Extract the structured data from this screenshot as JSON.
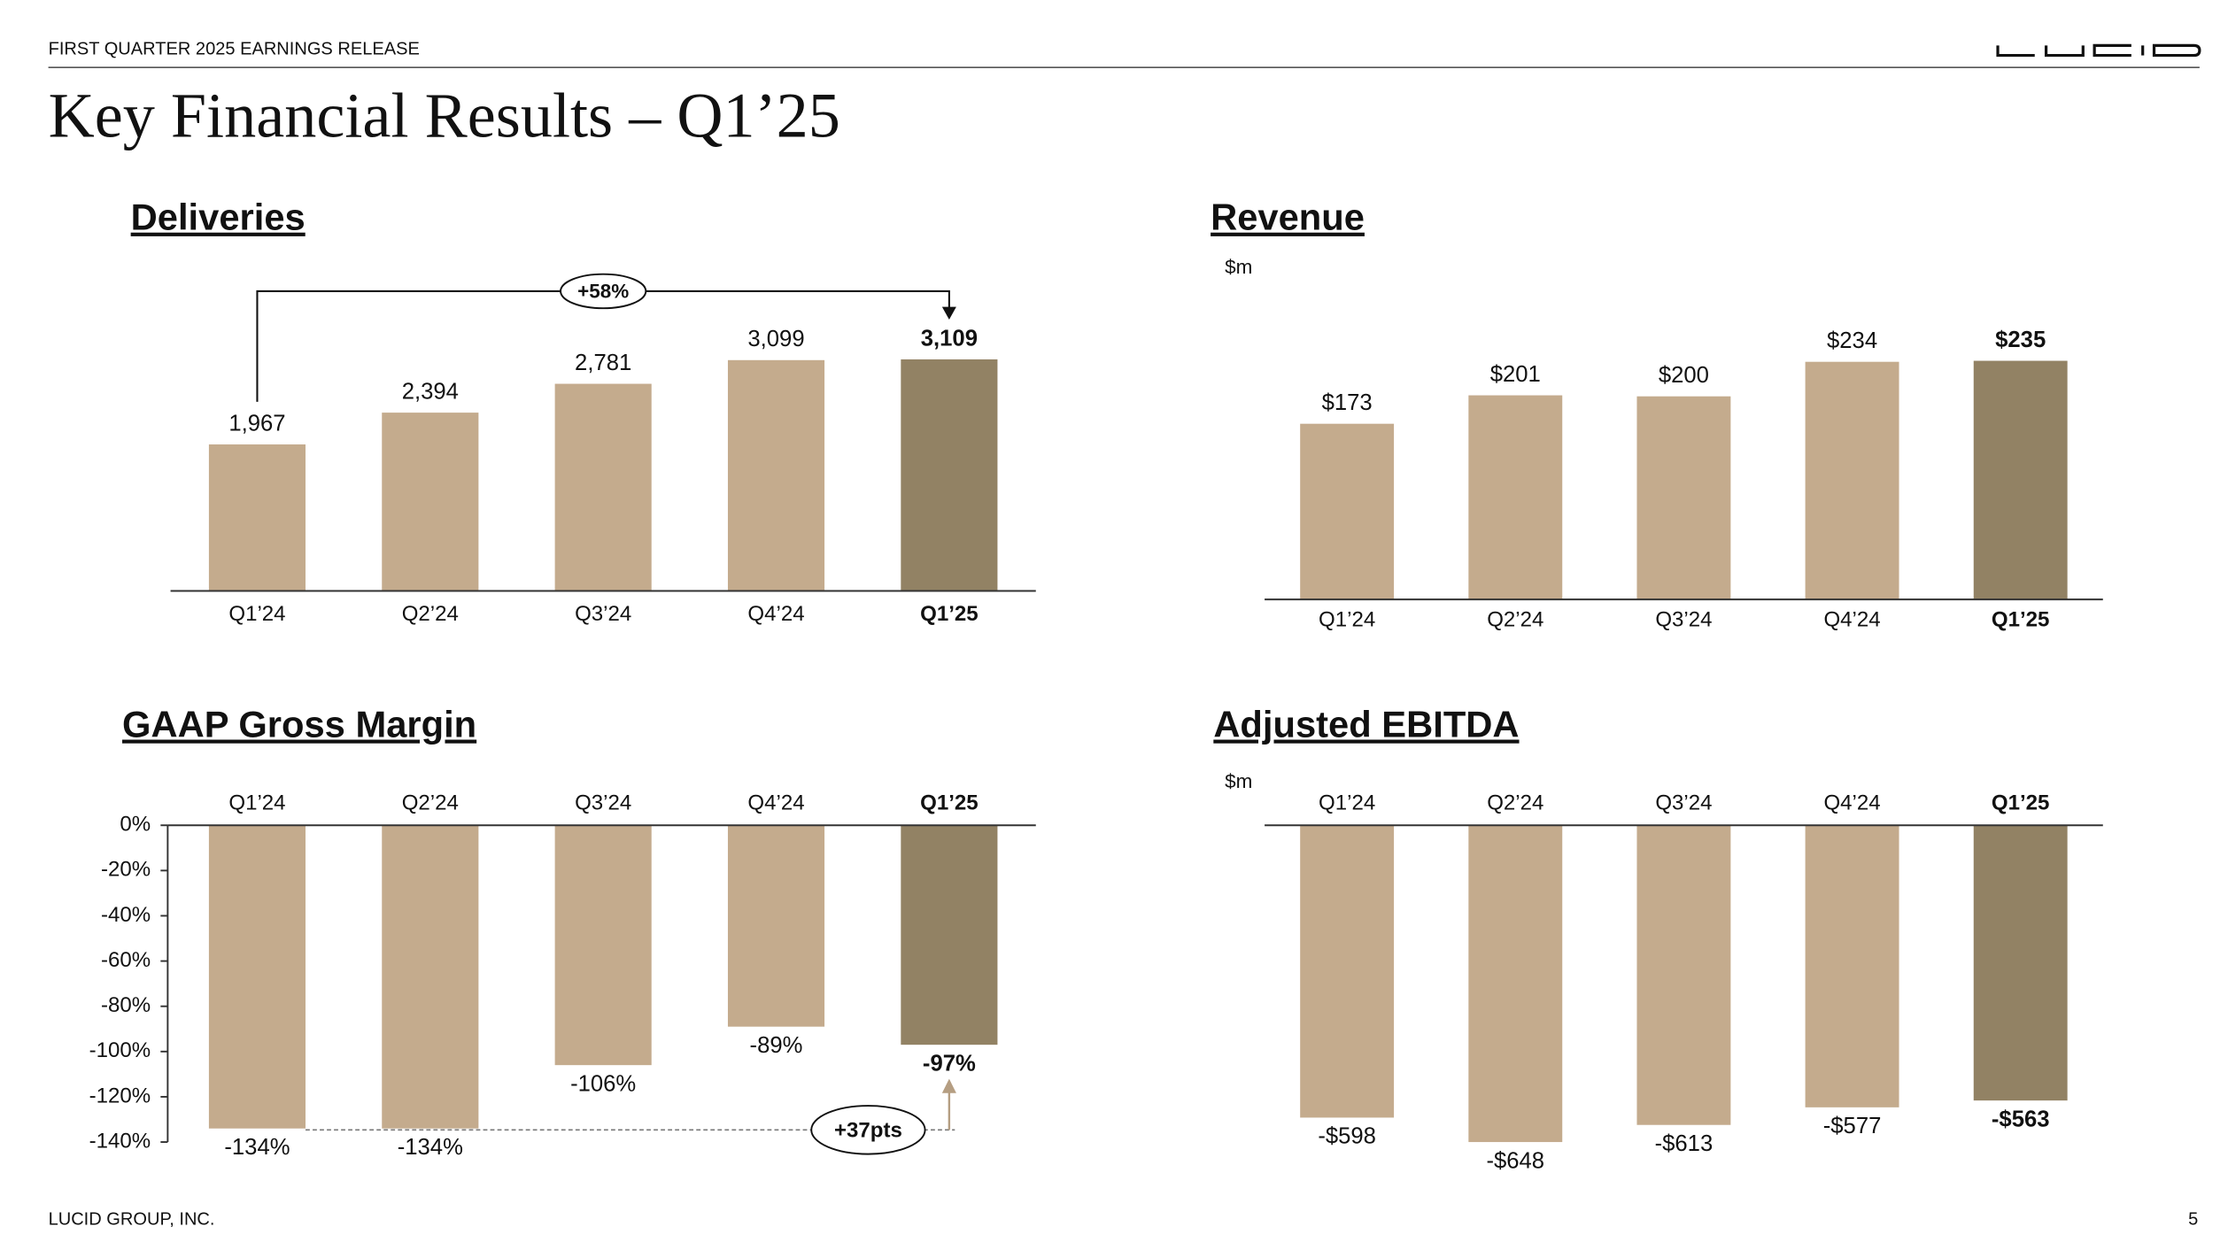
{
  "header": {
    "text": "FIRST QUARTER 2025 EARNINGS RELEASE"
  },
  "title": "Key Financial Results – Q1’25",
  "footer": {
    "company": "LUCID GROUP, INC.",
    "page": "5"
  },
  "chart_data": [
    {
      "type": "bar",
      "title": "Deliveries",
      "categories": [
        "Q1’24",
        "Q2’24",
        "Q3’24",
        "Q4’24",
        "Q1’25"
      ],
      "values": [
        1967,
        2394,
        2781,
        3099,
        3109
      ],
      "value_labels": [
        "1,967",
        "2,394",
        "2,781",
        "3,099",
        "3,109"
      ],
      "colors": [
        "#c4ab8d",
        "#c4ab8d",
        "#c4ab8d",
        "#c4ab8d",
        "#928264"
      ],
      "highlight_color": "#928264",
      "annotation": "+58%"
    },
    {
      "type": "bar",
      "title": "Revenue",
      "unit": "$m",
      "categories": [
        "Q1’24",
        "Q2’24",
        "Q3’24",
        "Q4’24",
        "Q1’25"
      ],
      "values": [
        173,
        201,
        200,
        234,
        235
      ],
      "value_labels": [
        "$173",
        "$201",
        "$200",
        "$234",
        "$235"
      ],
      "colors": [
        "#c4ab8d",
        "#c4ab8d",
        "#c4ab8d",
        "#c4ab8d",
        "#928264"
      ],
      "highlight_color": "#928264"
    },
    {
      "type": "bar",
      "title": "GAAP Gross Margin",
      "categories": [
        "Q1’24",
        "Q2’24",
        "Q3’24",
        "Q4’24",
        "Q1’25"
      ],
      "values": [
        -134,
        -134,
        -106,
        -89,
        -97
      ],
      "value_labels": [
        "-134%",
        "-134%",
        "-106%",
        "-89%",
        "-97%"
      ],
      "colors": [
        "#c4ab8d",
        "#c4ab8d",
        "#c4ab8d",
        "#c4ab8d",
        "#928264"
      ],
      "highlight_color": "#928264",
      "ylim": [
        -140,
        0
      ],
      "yticks": [
        {
          "value": 0,
          "label": "0%"
        },
        {
          "value": -20,
          "label": "-20%"
        },
        {
          "value": -40,
          "label": "-40%"
        },
        {
          "value": -60,
          "label": "-60%"
        },
        {
          "value": -80,
          "label": "-80%"
        },
        {
          "value": -100,
          "label": "-100%"
        },
        {
          "value": -120,
          "label": "-120%"
        },
        {
          "value": -140,
          "label": "-140%"
        }
      ],
      "annotation": "+37pts"
    },
    {
      "type": "bar",
      "title": "Adjusted EBITDA",
      "unit": "$m",
      "categories": [
        "Q1’24",
        "Q2’24",
        "Q3’24",
        "Q4’24",
        "Q1’25"
      ],
      "values": [
        -598,
        -648,
        -613,
        -577,
        -563
      ],
      "value_labels": [
        "-$598",
        "-$648",
        "-$613",
        "-$577",
        "-$563"
      ],
      "colors": [
        "#c4ab8d",
        "#c4ab8d",
        "#c4ab8d",
        "#c4ab8d",
        "#928264"
      ],
      "highlight_color": "#928264"
    }
  ]
}
